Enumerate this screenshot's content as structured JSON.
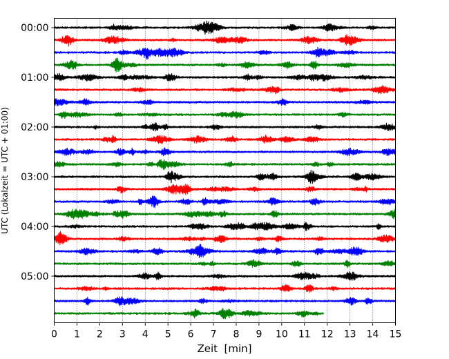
{
  "chart_data": {
    "type": "line",
    "title": "",
    "xlabel": "Zeit  [min]",
    "ylabel": "UTC (Lokalzeit = UTC + 01:00)",
    "xlim": [
      0,
      15
    ],
    "x_ticks": [
      0,
      1,
      2,
      3,
      4,
      5,
      6,
      7,
      8,
      9,
      10,
      11,
      12,
      13,
      14,
      15
    ],
    "x_tick_labels": [
      "0",
      "1",
      "2",
      "3",
      "4",
      "5",
      "6",
      "7",
      "8",
      "9",
      "10",
      "11",
      "12",
      "13",
      "14",
      "15"
    ],
    "grid": "vertical dotted",
    "row_minutes": 15,
    "y_ticks": [
      {
        "row": 0,
        "label": "00:00"
      },
      {
        "row": 4,
        "label": "01:00"
      },
      {
        "row": 8,
        "label": "02:00"
      },
      {
        "row": 12,
        "label": "03:00"
      },
      {
        "row": 16,
        "label": "04:00"
      },
      {
        "row": 20,
        "label": "05:00"
      }
    ],
    "color_cycle": [
      "#000000",
      "#ff0000",
      "#0000ff",
      "#008000"
    ],
    "traces": [
      {
        "row": 0,
        "color": "#000000",
        "x_end": 15
      },
      {
        "row": 1,
        "color": "#ff0000",
        "x_end": 15
      },
      {
        "row": 2,
        "color": "#0000ff",
        "x_end": 15
      },
      {
        "row": 3,
        "color": "#008000",
        "x_end": 15
      },
      {
        "row": 4,
        "color": "#000000",
        "x_end": 15
      },
      {
        "row": 5,
        "color": "#ff0000",
        "x_end": 15
      },
      {
        "row": 6,
        "color": "#0000ff",
        "x_end": 15
      },
      {
        "row": 7,
        "color": "#008000",
        "x_end": 15
      },
      {
        "row": 8,
        "color": "#000000",
        "x_end": 15
      },
      {
        "row": 9,
        "color": "#ff0000",
        "x_end": 15
      },
      {
        "row": 10,
        "color": "#0000ff",
        "x_end": 15
      },
      {
        "row": 11,
        "color": "#008000",
        "x_end": 15
      },
      {
        "row": 12,
        "color": "#000000",
        "x_end": 15
      },
      {
        "row": 13,
        "color": "#ff0000",
        "x_end": 15
      },
      {
        "row": 14,
        "color": "#0000ff",
        "x_end": 15
      },
      {
        "row": 15,
        "color": "#008000",
        "x_end": 15
      },
      {
        "row": 16,
        "color": "#000000",
        "x_end": 15
      },
      {
        "row": 17,
        "color": "#ff0000",
        "x_end": 15
      },
      {
        "row": 18,
        "color": "#0000ff",
        "x_end": 15
      },
      {
        "row": 19,
        "color": "#008000",
        "x_end": 15
      },
      {
        "row": 20,
        "color": "#000000",
        "x_end": 15
      },
      {
        "row": 21,
        "color": "#ff0000",
        "x_end": 15
      },
      {
        "row": 22,
        "color": "#0000ff",
        "x_end": 15
      },
      {
        "row": 23,
        "color": "#008000",
        "x_end": 11.85
      }
    ]
  }
}
